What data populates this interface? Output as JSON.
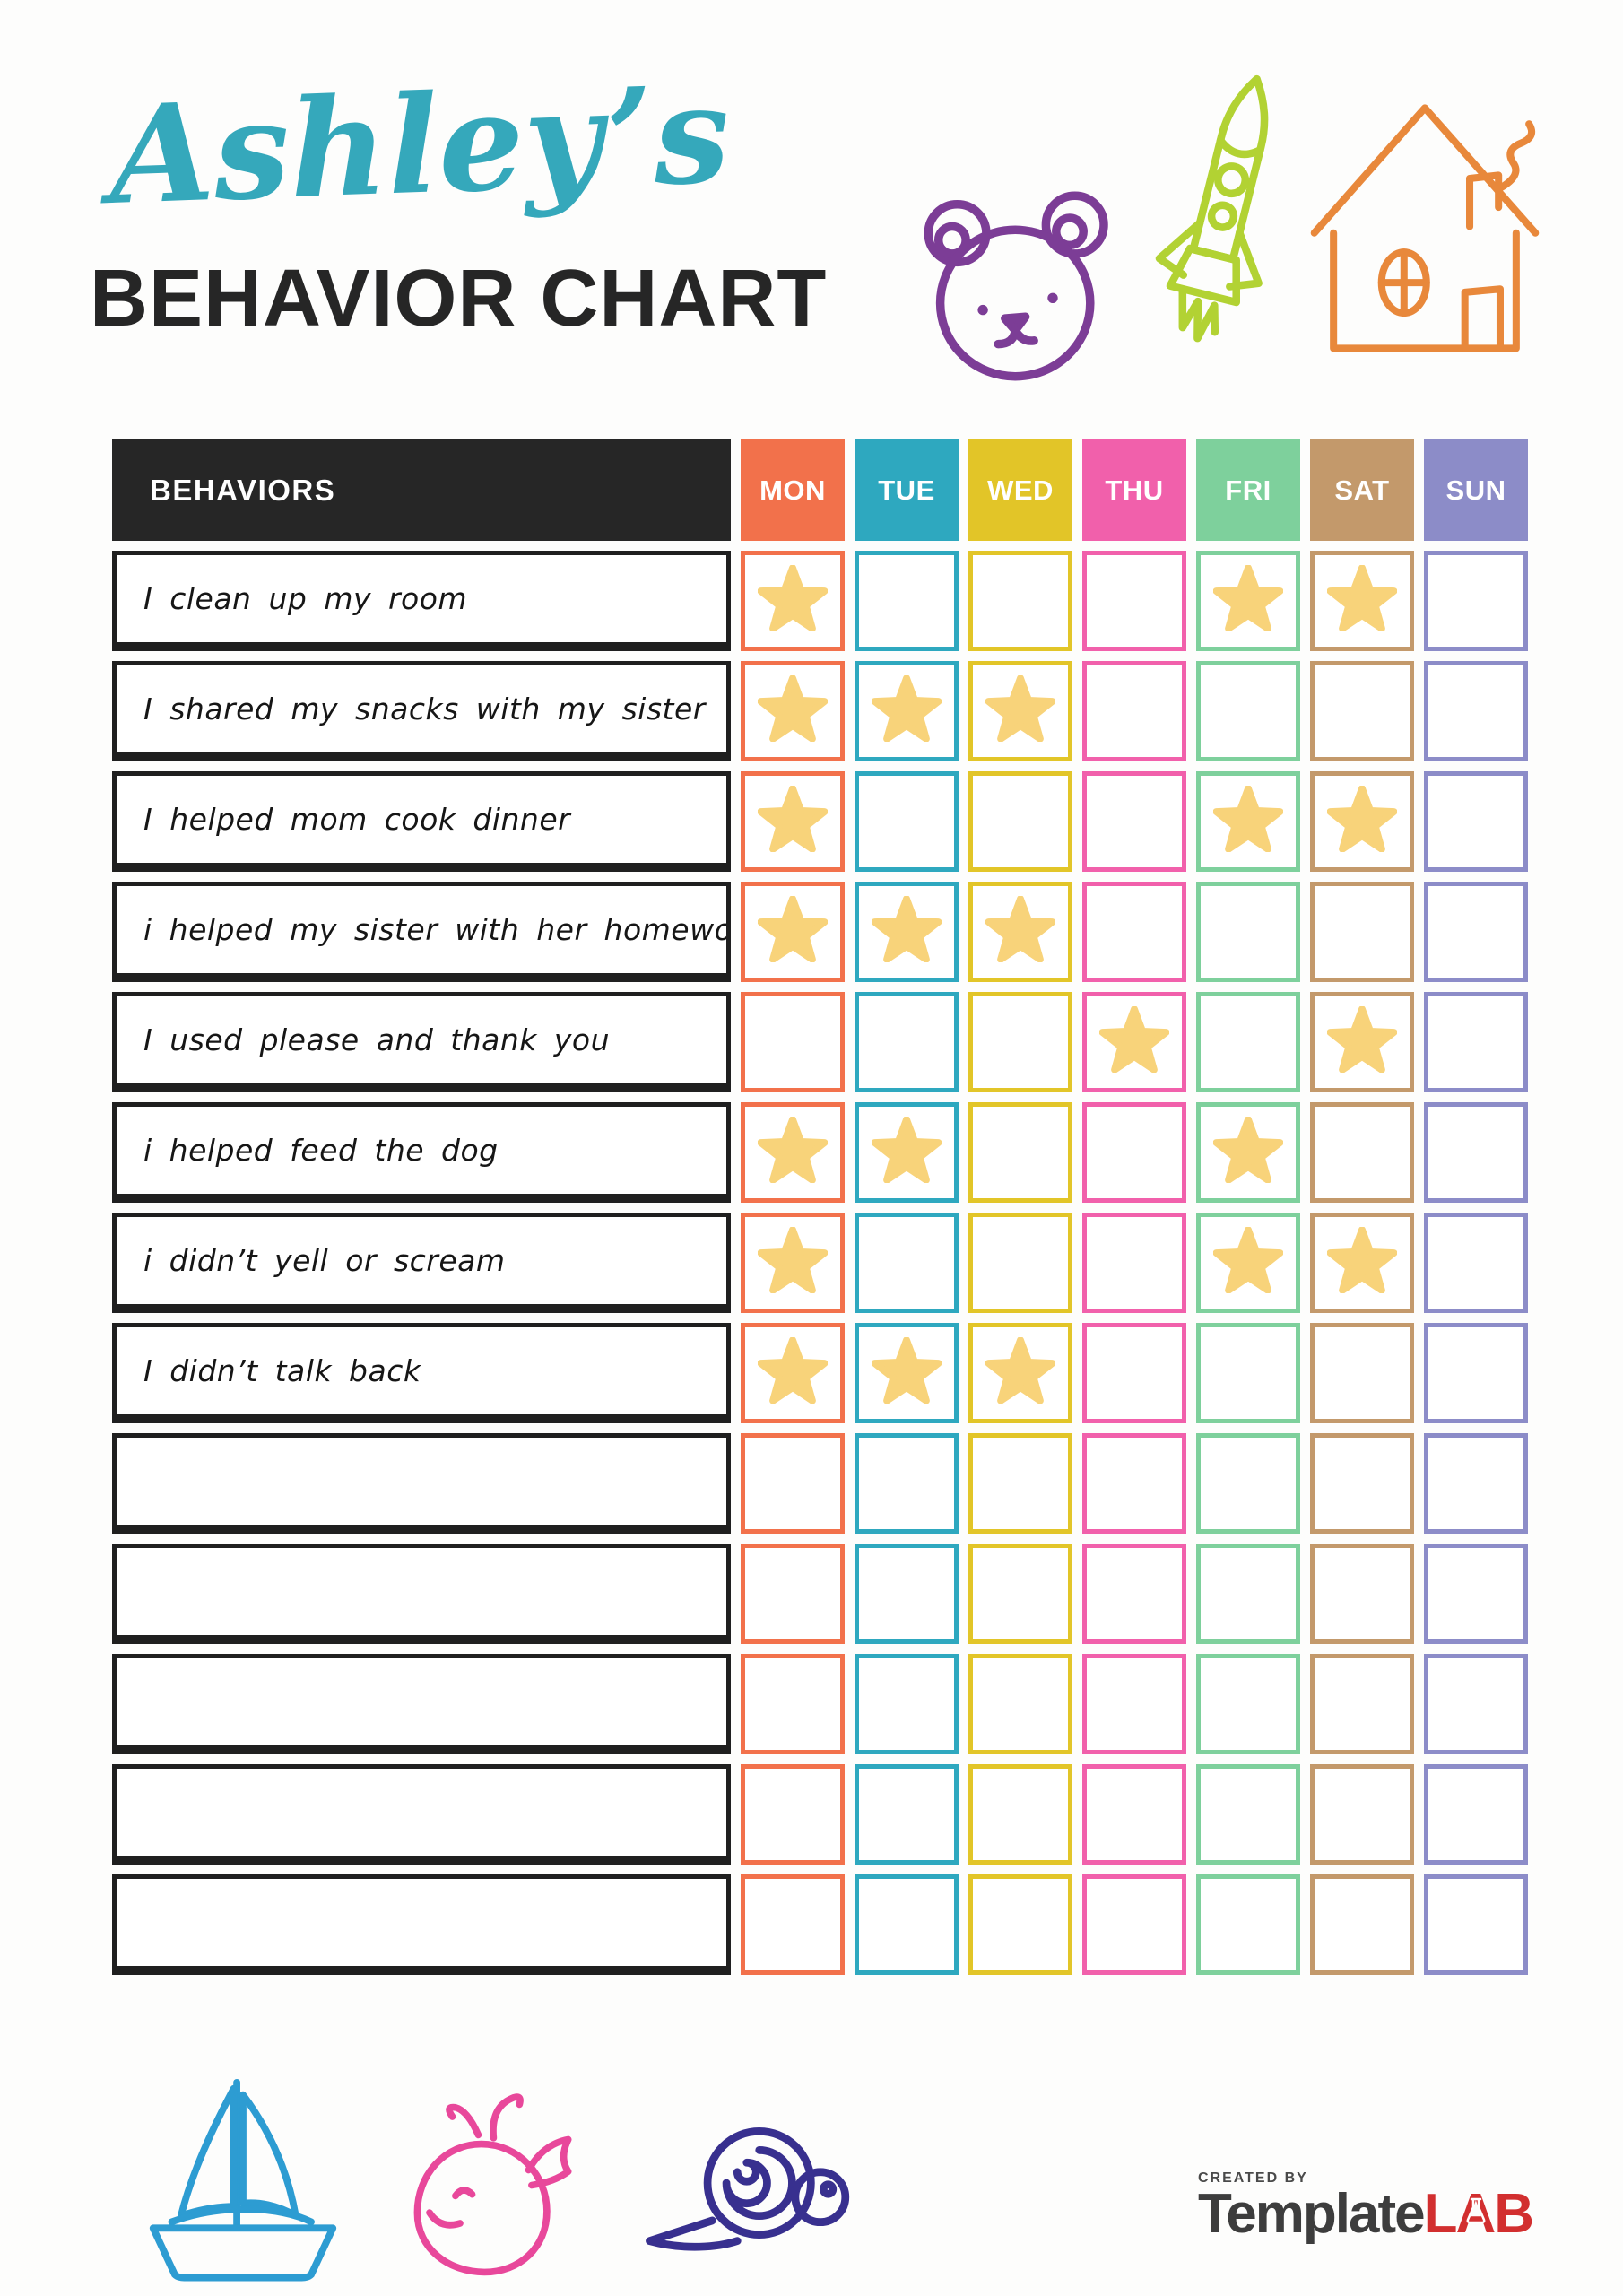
{
  "title": {
    "name": "Ashley’s",
    "subtitle": "BEHAVIOR CHART",
    "name_color": "#35a8bb",
    "subtitle_color": "#262626"
  },
  "table": {
    "header_label": "BEHAVIORS",
    "days": [
      {
        "label": "MON",
        "color": "#f2714b"
      },
      {
        "label": "TUE",
        "color": "#2ea8bf"
      },
      {
        "label": "WED",
        "color": "#e2c528"
      },
      {
        "label": "THU",
        "color": "#f160ab"
      },
      {
        "label": "FRI",
        "color": "#7ed09c"
      },
      {
        "label": "SAT",
        "color": "#c3996b"
      },
      {
        "label": "SUN",
        "color": "#8c8cc8"
      }
    ],
    "rows": [
      {
        "label": "I clean up my room",
        "stars": [
          1,
          0,
          0,
          0,
          1,
          1,
          0
        ]
      },
      {
        "label": "I shared my snacks with my sister",
        "stars": [
          1,
          1,
          1,
          0,
          0,
          0,
          0
        ]
      },
      {
        "label": "I helped mom cook dinner",
        "stars": [
          1,
          0,
          0,
          0,
          1,
          1,
          0
        ]
      },
      {
        "label": "i helped my sister with her homework",
        "stars": [
          1,
          1,
          1,
          0,
          0,
          0,
          0
        ]
      },
      {
        "label": "I used please and thank you",
        "stars": [
          0,
          0,
          0,
          1,
          0,
          1,
          0
        ]
      },
      {
        "label": "i helped feed the dog",
        "stars": [
          1,
          1,
          0,
          0,
          1,
          0,
          0
        ]
      },
      {
        "label": "i didn’t yell or scream",
        "stars": [
          1,
          0,
          0,
          0,
          1,
          1,
          0
        ]
      },
      {
        "label": "I didn’t talk back",
        "stars": [
          1,
          1,
          1,
          0,
          0,
          0,
          0
        ]
      },
      {
        "label": "",
        "stars": [
          0,
          0,
          0,
          0,
          0,
          0,
          0
        ]
      },
      {
        "label": "",
        "stars": [
          0,
          0,
          0,
          0,
          0,
          0,
          0
        ]
      },
      {
        "label": "",
        "stars": [
          0,
          0,
          0,
          0,
          0,
          0,
          0
        ]
      },
      {
        "label": "",
        "stars": [
          0,
          0,
          0,
          0,
          0,
          0,
          0
        ]
      },
      {
        "label": "",
        "stars": [
          0,
          0,
          0,
          0,
          0,
          0,
          0
        ]
      }
    ]
  },
  "star_color": "#f8d37a",
  "doodles": {
    "bear": "#7c3d96",
    "rocket": "#b2d233",
    "house": "#e8883b",
    "sailboat": "#2d9cd2",
    "whale": "#e8489b",
    "snail": "#38308f"
  },
  "footer": {
    "created_by": "CREATED BY",
    "brand_template": "Template",
    "brand_lab": "LAB",
    "brand_template_color": "#3d3d3d",
    "brand_lab_color": "#d22f2f"
  }
}
